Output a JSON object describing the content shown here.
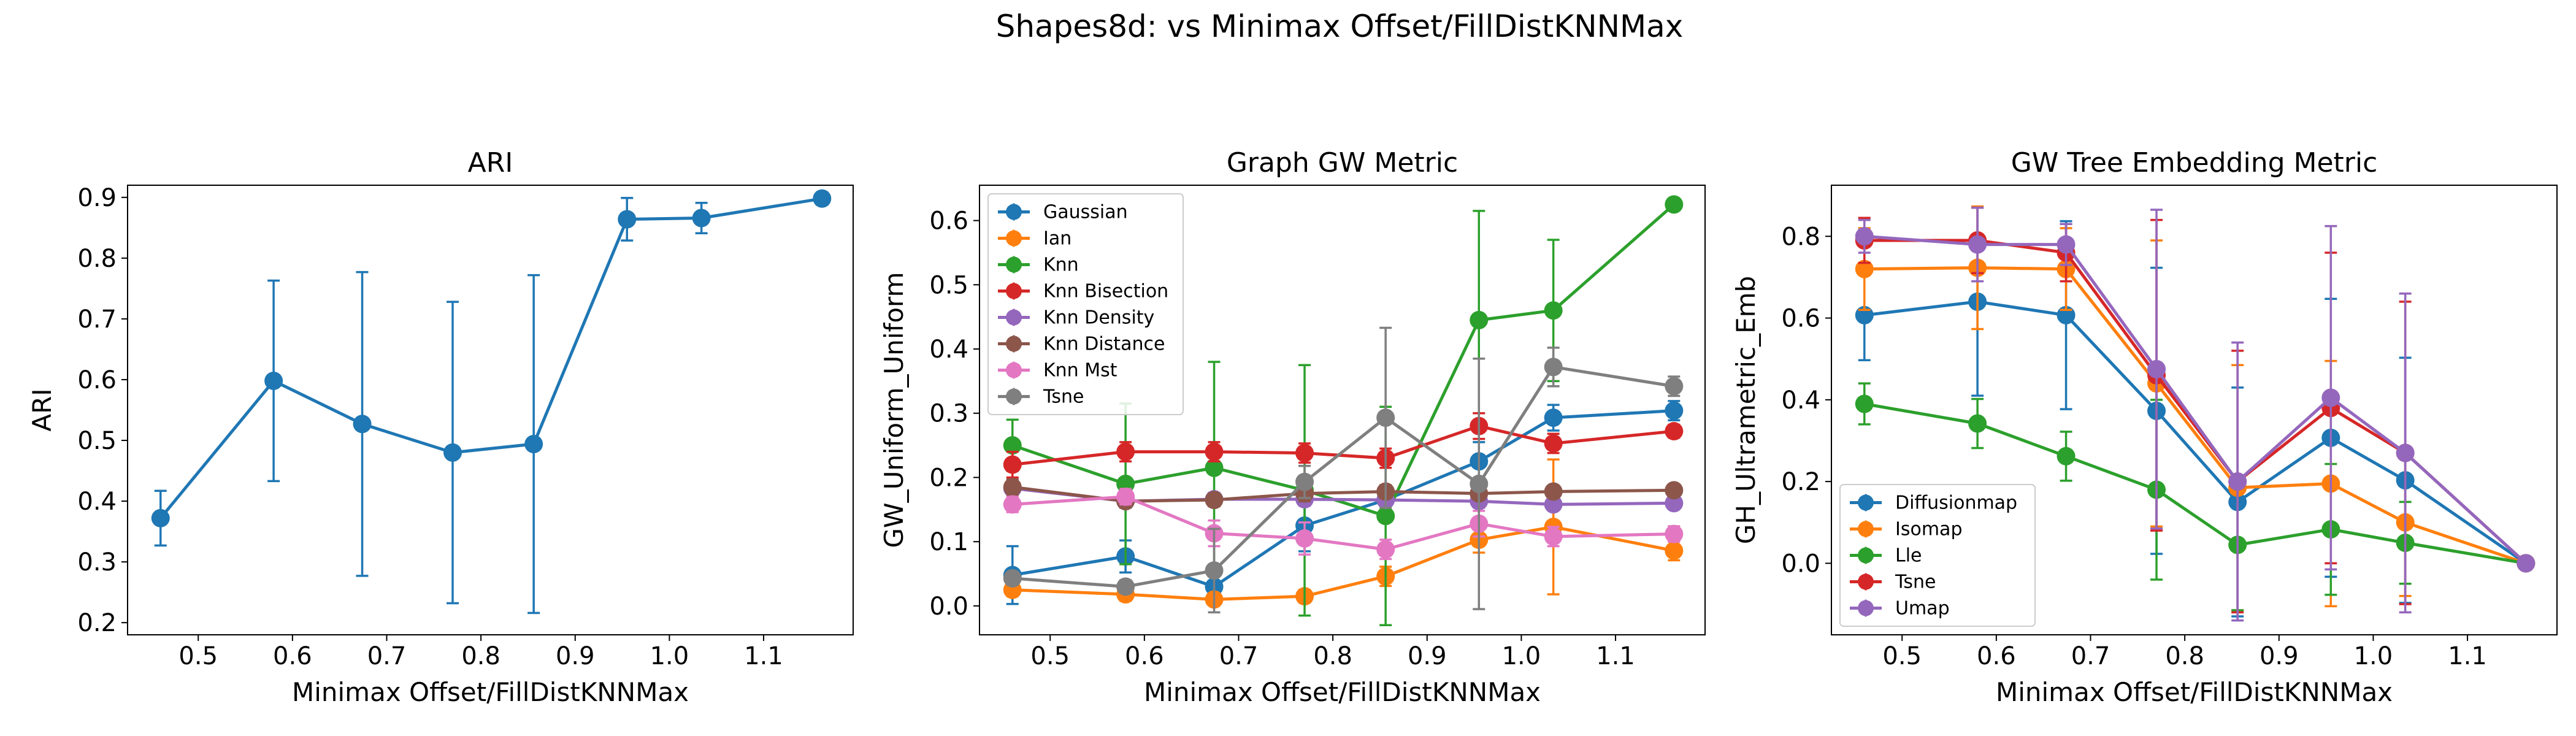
{
  "figure": {
    "suptitle": "Shapes8d: vs Minimax Offset/FillDistKNNMax"
  },
  "colors": {
    "blue": "#1f77b4",
    "orange": "#ff7f0e",
    "green": "#2ca02c",
    "red": "#d62728",
    "purple": "#9467bd",
    "brown": "#8c564b",
    "pink": "#e377c2",
    "gray": "#7f7f7f"
  },
  "chart_data": [
    {
      "type": "line",
      "title": "ARI",
      "xlabel": "Minimax Offset/FillDistKNNMax",
      "ylabel": "ARI",
      "xlim": [
        0.425,
        1.195
      ],
      "ylim": [
        0.18,
        0.92
      ],
      "xticks": [
        0.5,
        0.6,
        0.7,
        0.8,
        0.9,
        1.0,
        1.1
      ],
      "yticks": [
        0.2,
        0.3,
        0.4,
        0.5,
        0.6,
        0.7,
        0.8,
        0.9
      ],
      "x": [
        0.46,
        0.58,
        0.674,
        0.77,
        0.856,
        0.955,
        1.034,
        1.162
      ],
      "legend": null,
      "series": [
        {
          "name": "",
          "color": "blue",
          "values": [
            0.372,
            0.598,
            0.527,
            0.48,
            0.494,
            0.864,
            0.866,
            0.898
          ],
          "errors": [
            0.045,
            0.165,
            0.25,
            0.248,
            0.278,
            0.035,
            0.025,
            0.01
          ]
        }
      ]
    },
    {
      "type": "line",
      "title": "Graph GW Metric",
      "xlabel": "Minimax Offset/FillDistKNNMax",
      "ylabel": "GW_Uniform_Uniform",
      "xlim": [
        0.425,
        1.195
      ],
      "ylim": [
        -0.045,
        0.655
      ],
      "xticks": [
        0.5,
        0.6,
        0.7,
        0.8,
        0.9,
        1.0,
        1.1
      ],
      "yticks": [
        0.0,
        0.1,
        0.2,
        0.3,
        0.4,
        0.5,
        0.6
      ],
      "x": [
        0.46,
        0.58,
        0.674,
        0.77,
        0.856,
        0.955,
        1.034,
        1.162
      ],
      "legend": "upper-left",
      "series": [
        {
          "name": "Gaussian",
          "color": "blue",
          "values": [
            0.048,
            0.077,
            0.03,
            0.125,
            0.165,
            0.225,
            0.293,
            0.304
          ],
          "errors": [
            0.045,
            0.025,
            0.02,
            0.04,
            0.02,
            0.03,
            0.02,
            0.015
          ]
        },
        {
          "name": "Ian",
          "color": "orange",
          "values": [
            0.025,
            0.018,
            0.01,
            0.015,
            0.046,
            0.103,
            0.123,
            0.086
          ],
          "errors": [
            0.01,
            0.01,
            0.008,
            0.01,
            0.015,
            0.02,
            0.105,
            0.015
          ]
        },
        {
          "name": "Knn",
          "color": "green",
          "values": [
            0.25,
            0.19,
            0.215,
            0.18,
            0.14,
            0.445,
            0.46,
            0.625
          ],
          "errors": [
            0.04,
            0.125,
            0.165,
            0.195,
            0.17,
            0.17,
            0.11,
            0.005
          ]
        },
        {
          "name": "Knn Bisection",
          "color": "red",
          "values": [
            0.22,
            0.24,
            0.24,
            0.238,
            0.23,
            0.28,
            0.253,
            0.272
          ],
          "errors": [
            0.02,
            0.015,
            0.015,
            0.015,
            0.015,
            0.02,
            0.015,
            0.01
          ]
        },
        {
          "name": "Knn Density",
          "color": "purple",
          "values": [
            0.183,
            0.163,
            0.166,
            0.166,
            0.165,
            0.163,
            0.158,
            0.16
          ],
          "errors": [
            0.012,
            0.01,
            0.01,
            0.01,
            0.01,
            0.01,
            0.008,
            0.008
          ]
        },
        {
          "name": "Knn Distance",
          "color": "brown",
          "values": [
            0.185,
            0.163,
            0.165,
            0.175,
            0.178,
            0.175,
            0.178,
            0.18
          ],
          "errors": [
            0.012,
            0.01,
            0.01,
            0.012,
            0.01,
            0.01,
            0.008,
            0.008
          ]
        },
        {
          "name": "Knn Mst",
          "color": "pink",
          "values": [
            0.158,
            0.17,
            0.113,
            0.105,
            0.088,
            0.128,
            0.108,
            0.112
          ],
          "errors": [
            0.012,
            0.012,
            0.02,
            0.025,
            0.015,
            0.02,
            0.015,
            0.012
          ]
        },
        {
          "name": "Tsne",
          "color": "gray",
          "values": [
            0.043,
            0.03,
            0.055,
            0.193,
            0.293,
            0.19,
            0.372,
            0.342
          ],
          "errors": [
            0.01,
            0.01,
            0.065,
            0.025,
            0.14,
            0.195,
            0.03,
            0.015
          ]
        }
      ]
    },
    {
      "type": "line",
      "title": "GW Tree Embedding Metric",
      "xlabel": "Minimax Offset/FillDistKNNMax",
      "ylabel": "GH_Ultrametric_Emb",
      "xlim": [
        0.425,
        1.195
      ],
      "ylim": [
        -0.175,
        0.925
      ],
      "xticks": [
        0.5,
        0.6,
        0.7,
        0.8,
        0.9,
        1.0,
        1.1
      ],
      "yticks": [
        0.0,
        0.2,
        0.4,
        0.6,
        0.8
      ],
      "x": [
        0.46,
        0.58,
        0.674,
        0.77,
        0.856,
        0.955,
        1.034,
        1.162
      ],
      "legend": "lower-left",
      "series": [
        {
          "name": "Diffusionmap",
          "color": "blue",
          "values": [
            0.607,
            0.64,
            0.607,
            0.373,
            0.15,
            0.307,
            0.203,
            0.0
          ],
          "errors": [
            0.11,
            0.23,
            0.23,
            0.35,
            0.28,
            0.34,
            0.3,
            0.005
          ]
        },
        {
          "name": "Isomap",
          "color": "orange",
          "values": [
            0.72,
            0.723,
            0.72,
            0.44,
            0.185,
            0.195,
            0.1,
            0.0
          ],
          "errors": [
            0.1,
            0.15,
            0.1,
            0.35,
            0.3,
            0.3,
            0.18,
            0.005
          ]
        },
        {
          "name": "Lle",
          "color": "green",
          "values": [
            0.39,
            0.342,
            0.262,
            0.18,
            0.045,
            0.083,
            0.05,
            0.0
          ],
          "errors": [
            0.05,
            0.06,
            0.06,
            0.22,
            0.16,
            0.16,
            0.1,
            0.005
          ]
        },
        {
          "name": "Tsne",
          "color": "red",
          "values": [
            0.79,
            0.79,
            0.76,
            0.46,
            0.2,
            0.38,
            0.27,
            0.0
          ],
          "errors": [
            0.055,
            0.08,
            0.07,
            0.38,
            0.32,
            0.38,
            0.37,
            0.005
          ]
        },
        {
          "name": "Umap",
          "color": "purple",
          "values": [
            0.8,
            0.78,
            0.78,
            0.475,
            0.2,
            0.405,
            0.27,
            0.0
          ],
          "errors": [
            0.04,
            0.09,
            0.05,
            0.39,
            0.34,
            0.42,
            0.39,
            0.005
          ]
        }
      ]
    }
  ]
}
